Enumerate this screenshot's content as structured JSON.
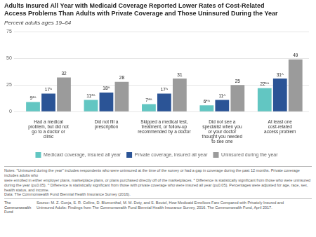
{
  "chart_data": {
    "type": "bar",
    "title": "Adults Insured All Year with Medicaid Coverage Reported Lower Rates of Cost-Related\nAccess Problems Than Adults with Private Coverage and Those Uninsured During the Year",
    "subtitle": "Percent adults ages 19–64",
    "categories": [
      "Had a medical\nproblem, but did not\ngo to a doctor or\nclinic",
      "Did not fill a\nprescription",
      "Skipped a medical test,\ntreatment, or follow-up\nrecommended by a doctor",
      "Did not see a\nspecialist when you\nor your doctor\nthought you needed\nto see one",
      "At least one\ncost-related\naccess problem"
    ],
    "series": [
      {
        "name": "Medicaid coverage, insured all year",
        "color": "#62C6C2",
        "values": [
          9,
          11,
          7,
          6,
          22
        ],
        "value_labels": [
          "9*^",
          "11*^",
          "7*^",
          "6*^",
          "22*^"
        ]
      },
      {
        "name": "Private coverage, insured all year",
        "color": "#2B5496",
        "values": [
          17,
          18,
          17,
          11,
          31
        ],
        "value_labels": [
          "17^",
          "18^",
          "17^",
          "11^",
          "31^"
        ]
      },
      {
        "name": "Uninsured during the year",
        "color": "#9B9B9B",
        "values": [
          32,
          28,
          31,
          25,
          49
        ],
        "value_labels": [
          "32",
          "28",
          "31",
          "25",
          "49"
        ]
      }
    ],
    "ylim": [
      0,
      75
    ],
    "yticks": [
      0,
      25,
      50,
      75
    ],
    "grid": true,
    "legend": "bottom",
    "data_labels": true,
    "notes": "Notes: \"Uninsured during the year\" includes respondents who were uninsured at the time of the survey or had a gap in coverage during the past 12 months. Private coverage includes adults who\nwere enrolled in either employer plans, marketplace plans, or plans purchased directly off of the marketplaces. * Difference is statistically significant from those who were uninsured\nduring the year (p≤0.05). ^ Difference is statistically significant from those with private coverage who were insured all year (p≤0.05). Percentages were adjusted for age, race, sex,\nhealth status, and income.\nData: The Commonwealth Fund Biennial Health Insurance Survey (2016).",
    "source": "Source: M. Z. Gunja, S. R. Collins, D. Blumenthal, M. M. Doty, and S. Beutel, How Medicaid Enrollees Fare Compared with Privately Insured and\nUninsured Adults: Findings from The Commonwealth Fund Biennial Health Insurance Survey, 2016. The Commonwealth Fund, April 2017.",
    "annotations": [
      "The",
      "Commonwealth",
      "Fund"
    ]
  }
}
